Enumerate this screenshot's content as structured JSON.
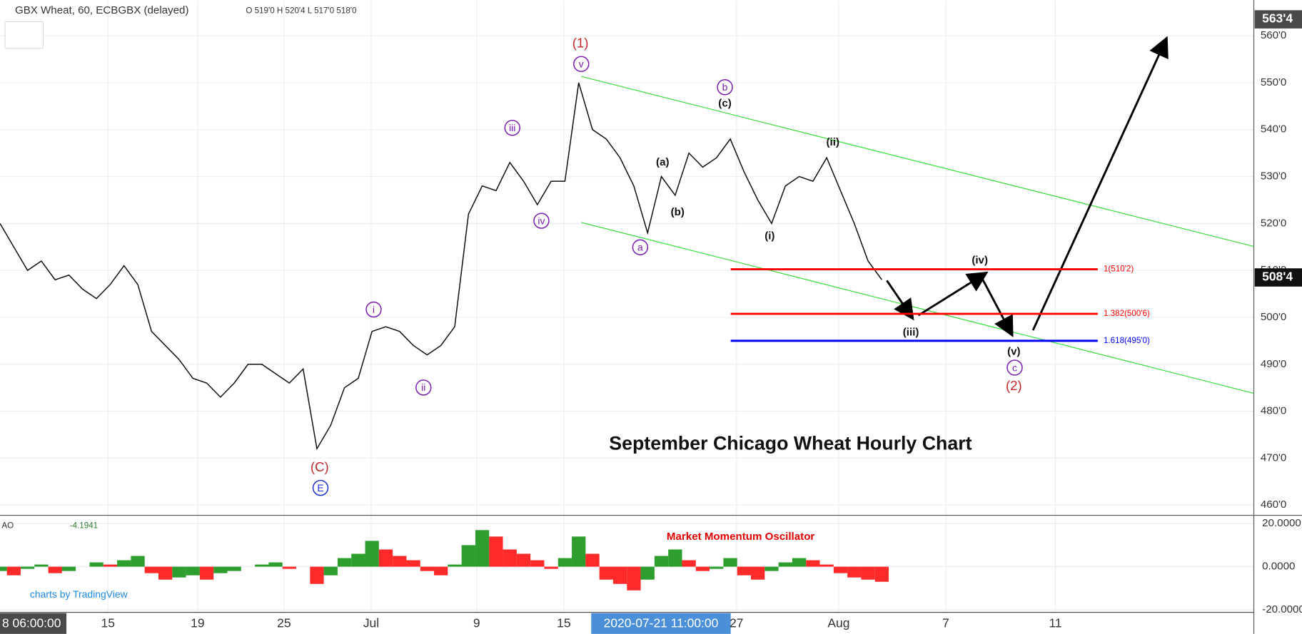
{
  "header": {
    "symbol": "GBX Wheat, 60, ECBGBX (delayed)",
    "ohlc": "O 519'0 H 520'4 L 517'0 518'0",
    "osc_name": "AO",
    "osc_value": "-4.1941",
    "branding": "charts by TradingView"
  },
  "chart_data": [
    {
      "type": "line",
      "title": "September Chicago Wheat Hourly Chart",
      "color": "#111111",
      "values": [
        520,
        515,
        510,
        512,
        508,
        509,
        506,
        504,
        507,
        511,
        507,
        497,
        494,
        491,
        487,
        486,
        483,
        486,
        490,
        490,
        488,
        486,
        489,
        472,
        477,
        485,
        487,
        497,
        498,
        497,
        494,
        492,
        494,
        498,
        522,
        528,
        527,
        533,
        529,
        524,
        529,
        529,
        550,
        540,
        538,
        534,
        528,
        518,
        530,
        526,
        535,
        532,
        534,
        538,
        531,
        525,
        520,
        528,
        530,
        529,
        534,
        527,
        520,
        512,
        508
      ],
      "ylim": [
        458,
        567.6
      ],
      "yticks": [
        {
          "value": 460,
          "label": "460'0"
        },
        {
          "value": 470,
          "label": "470'0"
        },
        {
          "value": 480,
          "label": "480'0"
        },
        {
          "value": 490,
          "label": "490'0"
        },
        {
          "value": 500,
          "label": "500'0"
        },
        {
          "value": 510,
          "label": "510'0"
        },
        {
          "value": 520,
          "label": "520'0"
        },
        {
          "value": 530,
          "label": "530'0"
        },
        {
          "value": 540,
          "label": "540'0"
        },
        {
          "value": 550,
          "label": "550'0"
        },
        {
          "value": 560,
          "label": "560'0"
        }
      ],
      "grid": true,
      "x_labels": [
        "8 06:00:00",
        "15",
        "19",
        "25",
        "Jul",
        "9",
        "15",
        "2020-07-21 11:00:00",
        "27",
        "Aug",
        "7",
        "11"
      ],
      "price_badges": [
        {
          "value": 563.5,
          "label": "563'4"
        },
        {
          "value": 508.5,
          "label": "508'4"
        }
      ],
      "fib_levels": [
        {
          "value": 510.25,
          "label": "1(510'2)",
          "color": "#ff0000"
        },
        {
          "value": 500.75,
          "label": "1.382(500'6)",
          "color": "#ff0000"
        },
        {
          "value": 495,
          "label": "1.618(495'0)",
          "color": "#0000ff"
        }
      ],
      "annotations": [
        {
          "text": "(1)",
          "color": "#c0282d"
        },
        {
          "text": "v",
          "color": "#7a1fb0"
        },
        {
          "text": "iii",
          "color": "#7a1fb0"
        },
        {
          "text": "iv",
          "color": "#7a1fb0"
        },
        {
          "text": "a",
          "color": "#7a1fb0"
        },
        {
          "text": "b",
          "color": "#7a1fb0"
        },
        {
          "text": "(c)",
          "color": "#111111"
        },
        {
          "text": "(a)",
          "color": "#111111"
        },
        {
          "text": "(b)",
          "color": "#111111"
        },
        {
          "text": "(i)",
          "color": "#111111"
        },
        {
          "text": "(ii)",
          "color": "#111111"
        },
        {
          "text": "(iii)",
          "color": "#111111"
        },
        {
          "text": "(iv)",
          "color": "#111111"
        },
        {
          "text": "(v)",
          "color": "#111111"
        },
        {
          "text": "c",
          "color": "#7a1fb0"
        },
        {
          "text": "(2)",
          "color": "#c0282d"
        },
        {
          "text": "i",
          "color": "#7a1fb0"
        },
        {
          "text": "ii",
          "color": "#7a1fb0"
        },
        {
          "text": "(C)",
          "color": "#c0282d"
        },
        {
          "text": "E",
          "color": "#1a2fd0"
        }
      ]
    },
    {
      "type": "bar",
      "title": "Market Momentum Oscillator",
      "up_color": "#2e9e2e",
      "down_color": "#ff2a2a",
      "values": [
        -2,
        -4,
        -1,
        1,
        -3,
        -2,
        0,
        2,
        1,
        3,
        5,
        -3,
        -6,
        -5,
        -4,
        -6,
        -3,
        -2,
        0,
        1,
        2,
        -1,
        0,
        -8,
        -4,
        4,
        6,
        12,
        8,
        5,
        3,
        -2,
        -4,
        1,
        10,
        17,
        14,
        8,
        6,
        3,
        -1,
        4,
        14,
        6,
        -6,
        -8,
        -11,
        -6,
        5,
        8,
        3,
        -2,
        -1,
        4,
        -4,
        -6,
        -2,
        2,
        4,
        3,
        1,
        -3,
        -5,
        -6,
        -7
      ],
      "ylim": [
        -21.2,
        23.5
      ],
      "yticks": [
        {
          "value": 20,
          "label": "20.0000"
        },
        {
          "value": 0,
          "label": "0.0000"
        },
        {
          "value": -20,
          "label": "-20.0000"
        }
      ]
    }
  ]
}
